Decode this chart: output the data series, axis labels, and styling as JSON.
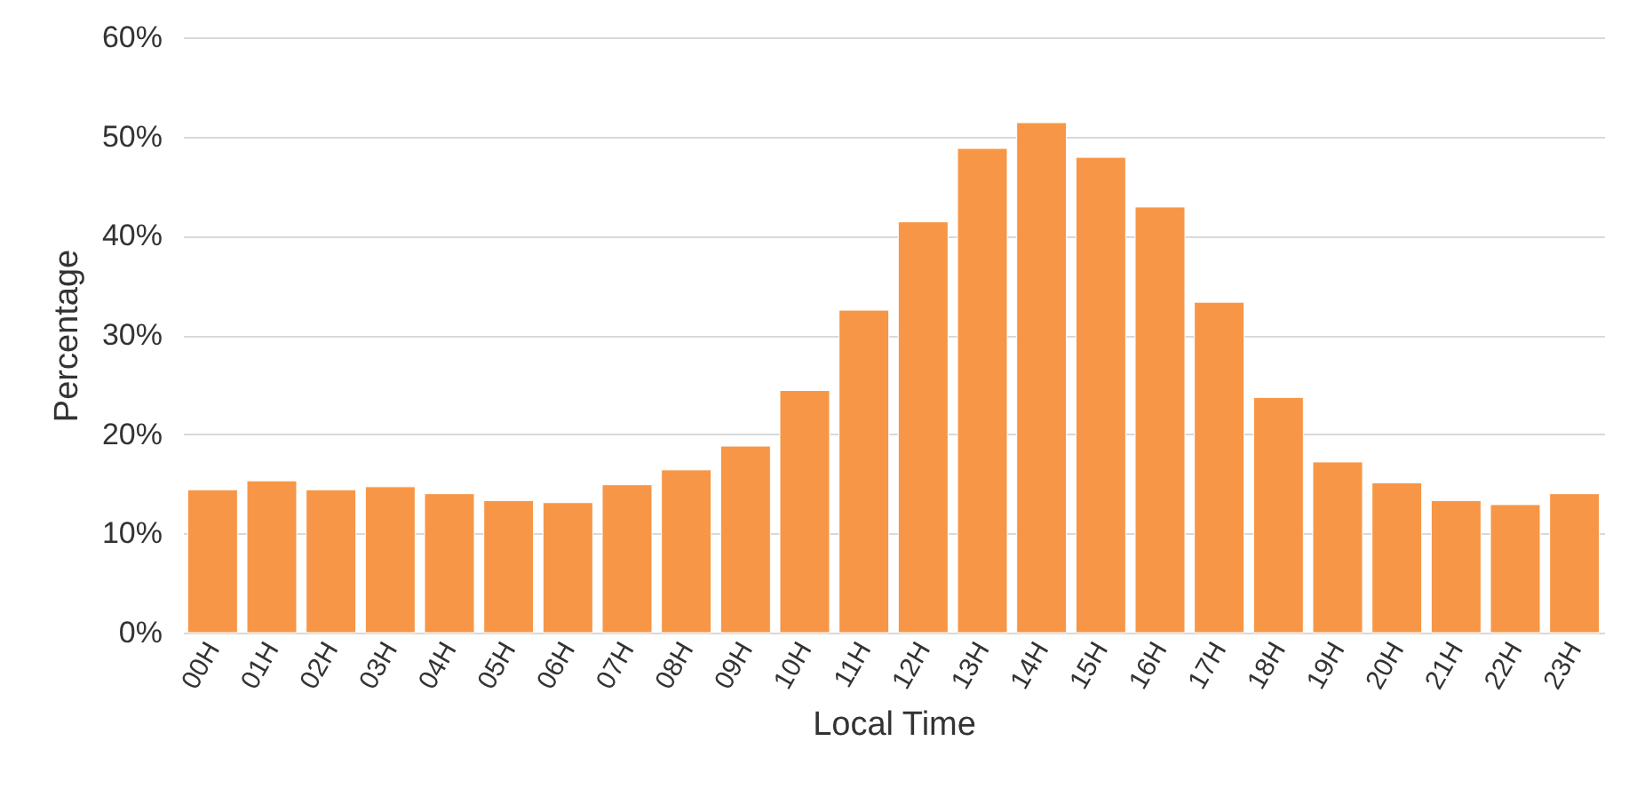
{
  "chart_data": {
    "type": "bar",
    "xlabel": "Local Time",
    "ylabel": "Percentage",
    "categories": [
      "00H",
      "01H",
      "02H",
      "03H",
      "04H",
      "05H",
      "06H",
      "07H",
      "08H",
      "09H",
      "10H",
      "11H",
      "12H",
      "13H",
      "14H",
      "15H",
      "16H",
      "17H",
      "18H",
      "19H",
      "20H",
      "21H",
      "22H",
      "23H"
    ],
    "values": [
      14.4,
      15.3,
      14.4,
      14.7,
      14.0,
      13.3,
      13.1,
      14.9,
      16.4,
      18.8,
      24.4,
      32.5,
      41.4,
      48.8,
      51.4,
      47.9,
      42.9,
      33.3,
      23.7,
      17.2,
      15.1,
      13.3,
      12.9,
      14.0
    ],
    "color": "#f79646",
    "ylim": [
      0,
      60
    ],
    "yticks": [
      {
        "value": 0,
        "label": "0%"
      },
      {
        "value": 10,
        "label": "10%"
      },
      {
        "value": 20,
        "label": "20%"
      },
      {
        "value": 30,
        "label": "30%"
      },
      {
        "value": 40,
        "label": "40%"
      },
      {
        "value": 50,
        "label": "50%"
      },
      {
        "value": 60,
        "label": "60%"
      }
    ],
    "grid": "y"
  }
}
